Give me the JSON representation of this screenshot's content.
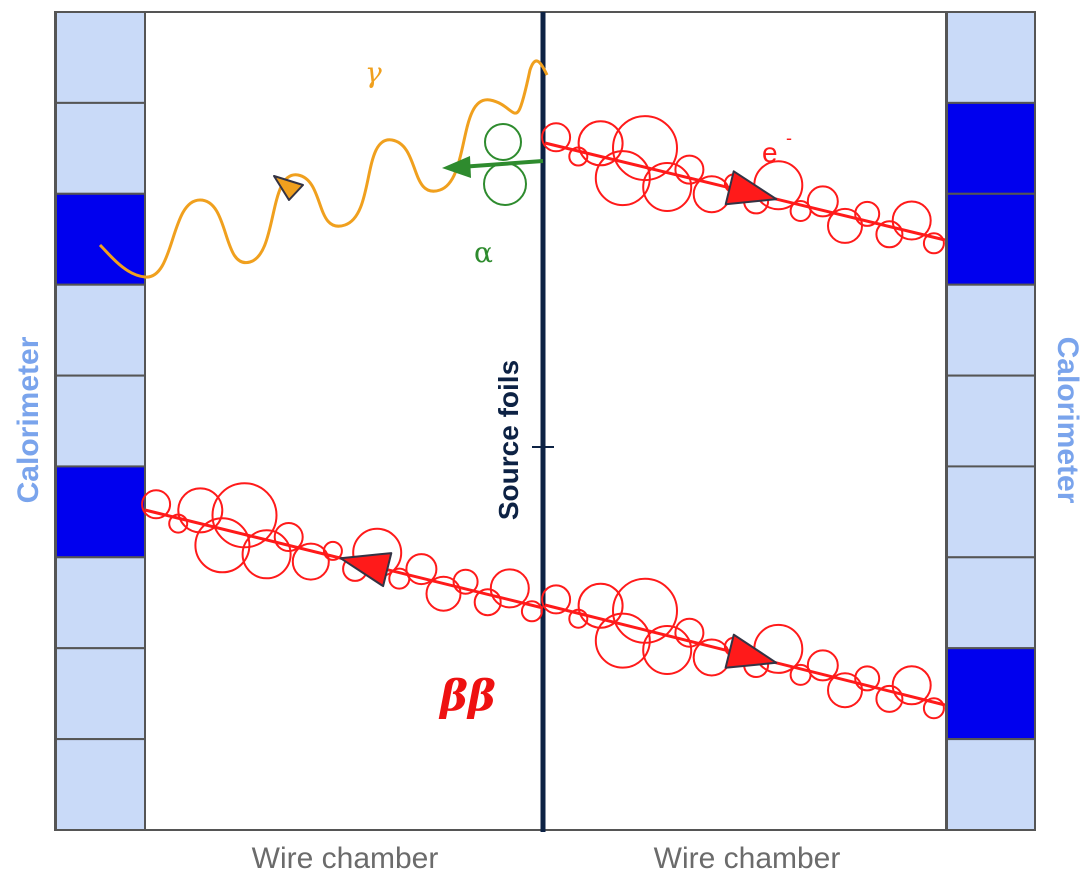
{
  "labels": {
    "calorimeter_left": "Calorimeter",
    "calorimeter_right": "Calorimeter",
    "source_foils": "Source foils",
    "wire_chamber_left": "Wire chamber",
    "wire_chamber_right": "Wire chamber",
    "gamma": "γ",
    "alpha": "α",
    "electron": "e",
    "electron_charge": "-",
    "double_beta": "ββ"
  },
  "colors": {
    "calorimeter_block": "#c9daf8",
    "calorimeter_hit": "#0000ee",
    "foil": "#0d2244",
    "electron_track": "#ff1a1a",
    "gamma": "#f0a01e",
    "alpha": "#2e8b2e",
    "calorimeter_label": "#7aa4ec",
    "wire_label": "#6b6b6b"
  },
  "calorimeter": {
    "left_hits": [
      2,
      5
    ],
    "right_hits": [
      1,
      2,
      7
    ]
  }
}
